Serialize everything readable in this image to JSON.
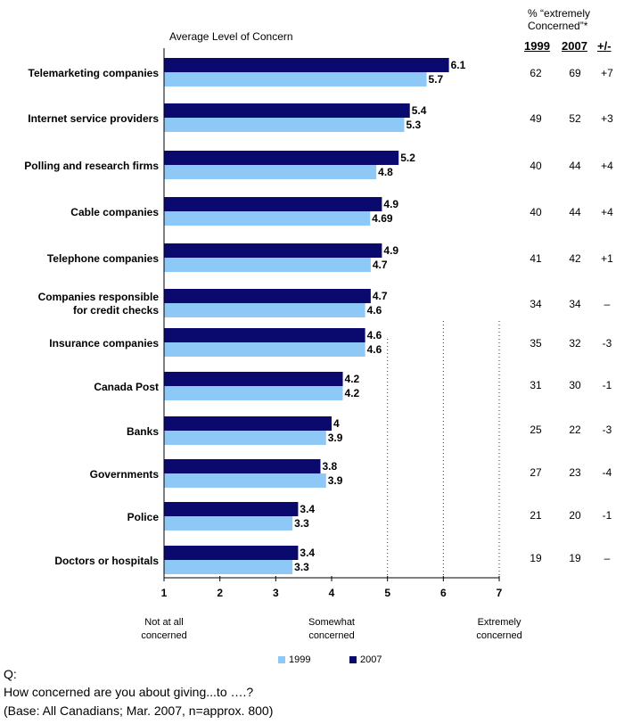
{
  "chart_data": {
    "type": "bar",
    "title": "Average Level of Concern",
    "categories": [
      "Telemarketing companies",
      "Internet service providers",
      "Polling and research firms",
      "Cable companies",
      "Telephone companies",
      "Companies responsible for credit checks",
      "Insurance companies",
      "Canada Post",
      "Banks",
      "Governments",
      "Police",
      "Doctors or hospitals"
    ],
    "category_lines": [
      [
        "Telemarketing companies"
      ],
      [
        "Internet service providers"
      ],
      [
        "Polling and research firms"
      ],
      [
        "Cable companies"
      ],
      [
        "Telephone companies"
      ],
      [
        "Companies responsible",
        "for credit checks"
      ],
      [
        "Insurance companies"
      ],
      [
        "Canada Post"
      ],
      [
        "Banks"
      ],
      [
        "Governments"
      ],
      [
        "Police"
      ],
      [
        "Doctors or hospitals"
      ]
    ],
    "series": [
      {
        "name": "2007",
        "color": "#0a0a6e",
        "values": [
          6.1,
          5.4,
          5.2,
          4.9,
          4.9,
          4.7,
          4.6,
          4.2,
          4,
          3.8,
          3.4,
          3.4
        ],
        "labels": [
          "6.1",
          "5.4",
          "5.2",
          "4.9",
          "4.9",
          "4.7",
          "4.6",
          "4.2",
          "4",
          "3.8",
          "3.4",
          "3.4"
        ]
      },
      {
        "name": "1999",
        "color": "#8ec8f6",
        "values": [
          5.7,
          5.3,
          4.8,
          4.69,
          4.7,
          4.6,
          4.6,
          4.2,
          3.9,
          3.9,
          3.3,
          3.3
        ],
        "labels": [
          "5.7",
          "5.3",
          "4.8",
          "4.69",
          "4.7",
          "4.6",
          "4.6",
          "4.2",
          "3.9",
          "3.9",
          "3.3",
          "3.3"
        ]
      }
    ],
    "xlim": [
      1,
      7
    ],
    "xticks": [
      "1",
      "2",
      "3",
      "4",
      "5",
      "6",
      "7"
    ],
    "scale_labels": [
      {
        "at": 1,
        "lines": [
          "Not at all",
          "concerned"
        ]
      },
      {
        "at": 4,
        "lines": [
          "Somewhat",
          "concerned"
        ]
      },
      {
        "at": 7,
        "lines": [
          "Extremely",
          "concerned"
        ]
      }
    ],
    "gridlines": "dotted at 5, 6, 7",
    "legend_position": "bottom"
  },
  "right_table": {
    "title_line1": "% “extremely",
    "title_line2": "Concerned”*",
    "col_1999": "1999",
    "col_2007": "2007",
    "col_diff": "+/-",
    "rows": [
      [
        "62",
        "69",
        "+7"
      ],
      [
        "49",
        "52",
        "+3"
      ],
      [
        "40",
        "44",
        "+4"
      ],
      [
        "40",
        "44",
        "+4"
      ],
      [
        "41",
        "42",
        "+1"
      ],
      [
        "34",
        "34",
        "–"
      ],
      [
        "35",
        "32",
        "-3"
      ],
      [
        "31",
        "30",
        "-1"
      ],
      [
        "25",
        "22",
        "-3"
      ],
      [
        "27",
        "23",
        "-4"
      ],
      [
        "21",
        "20",
        "-1"
      ],
      [
        "19",
        "19",
        "–"
      ]
    ]
  },
  "legend": {
    "item_1999": "1999",
    "item_2007": "2007",
    "color_1999": "#8ec8f6",
    "color_2007": "#0a0a6e"
  },
  "question": {
    "label": "Q:",
    "text": "How concerned are you about giving...to ….?",
    "base": "(Base: All Canadians; Mar. 2007, n=approx. 800)"
  }
}
